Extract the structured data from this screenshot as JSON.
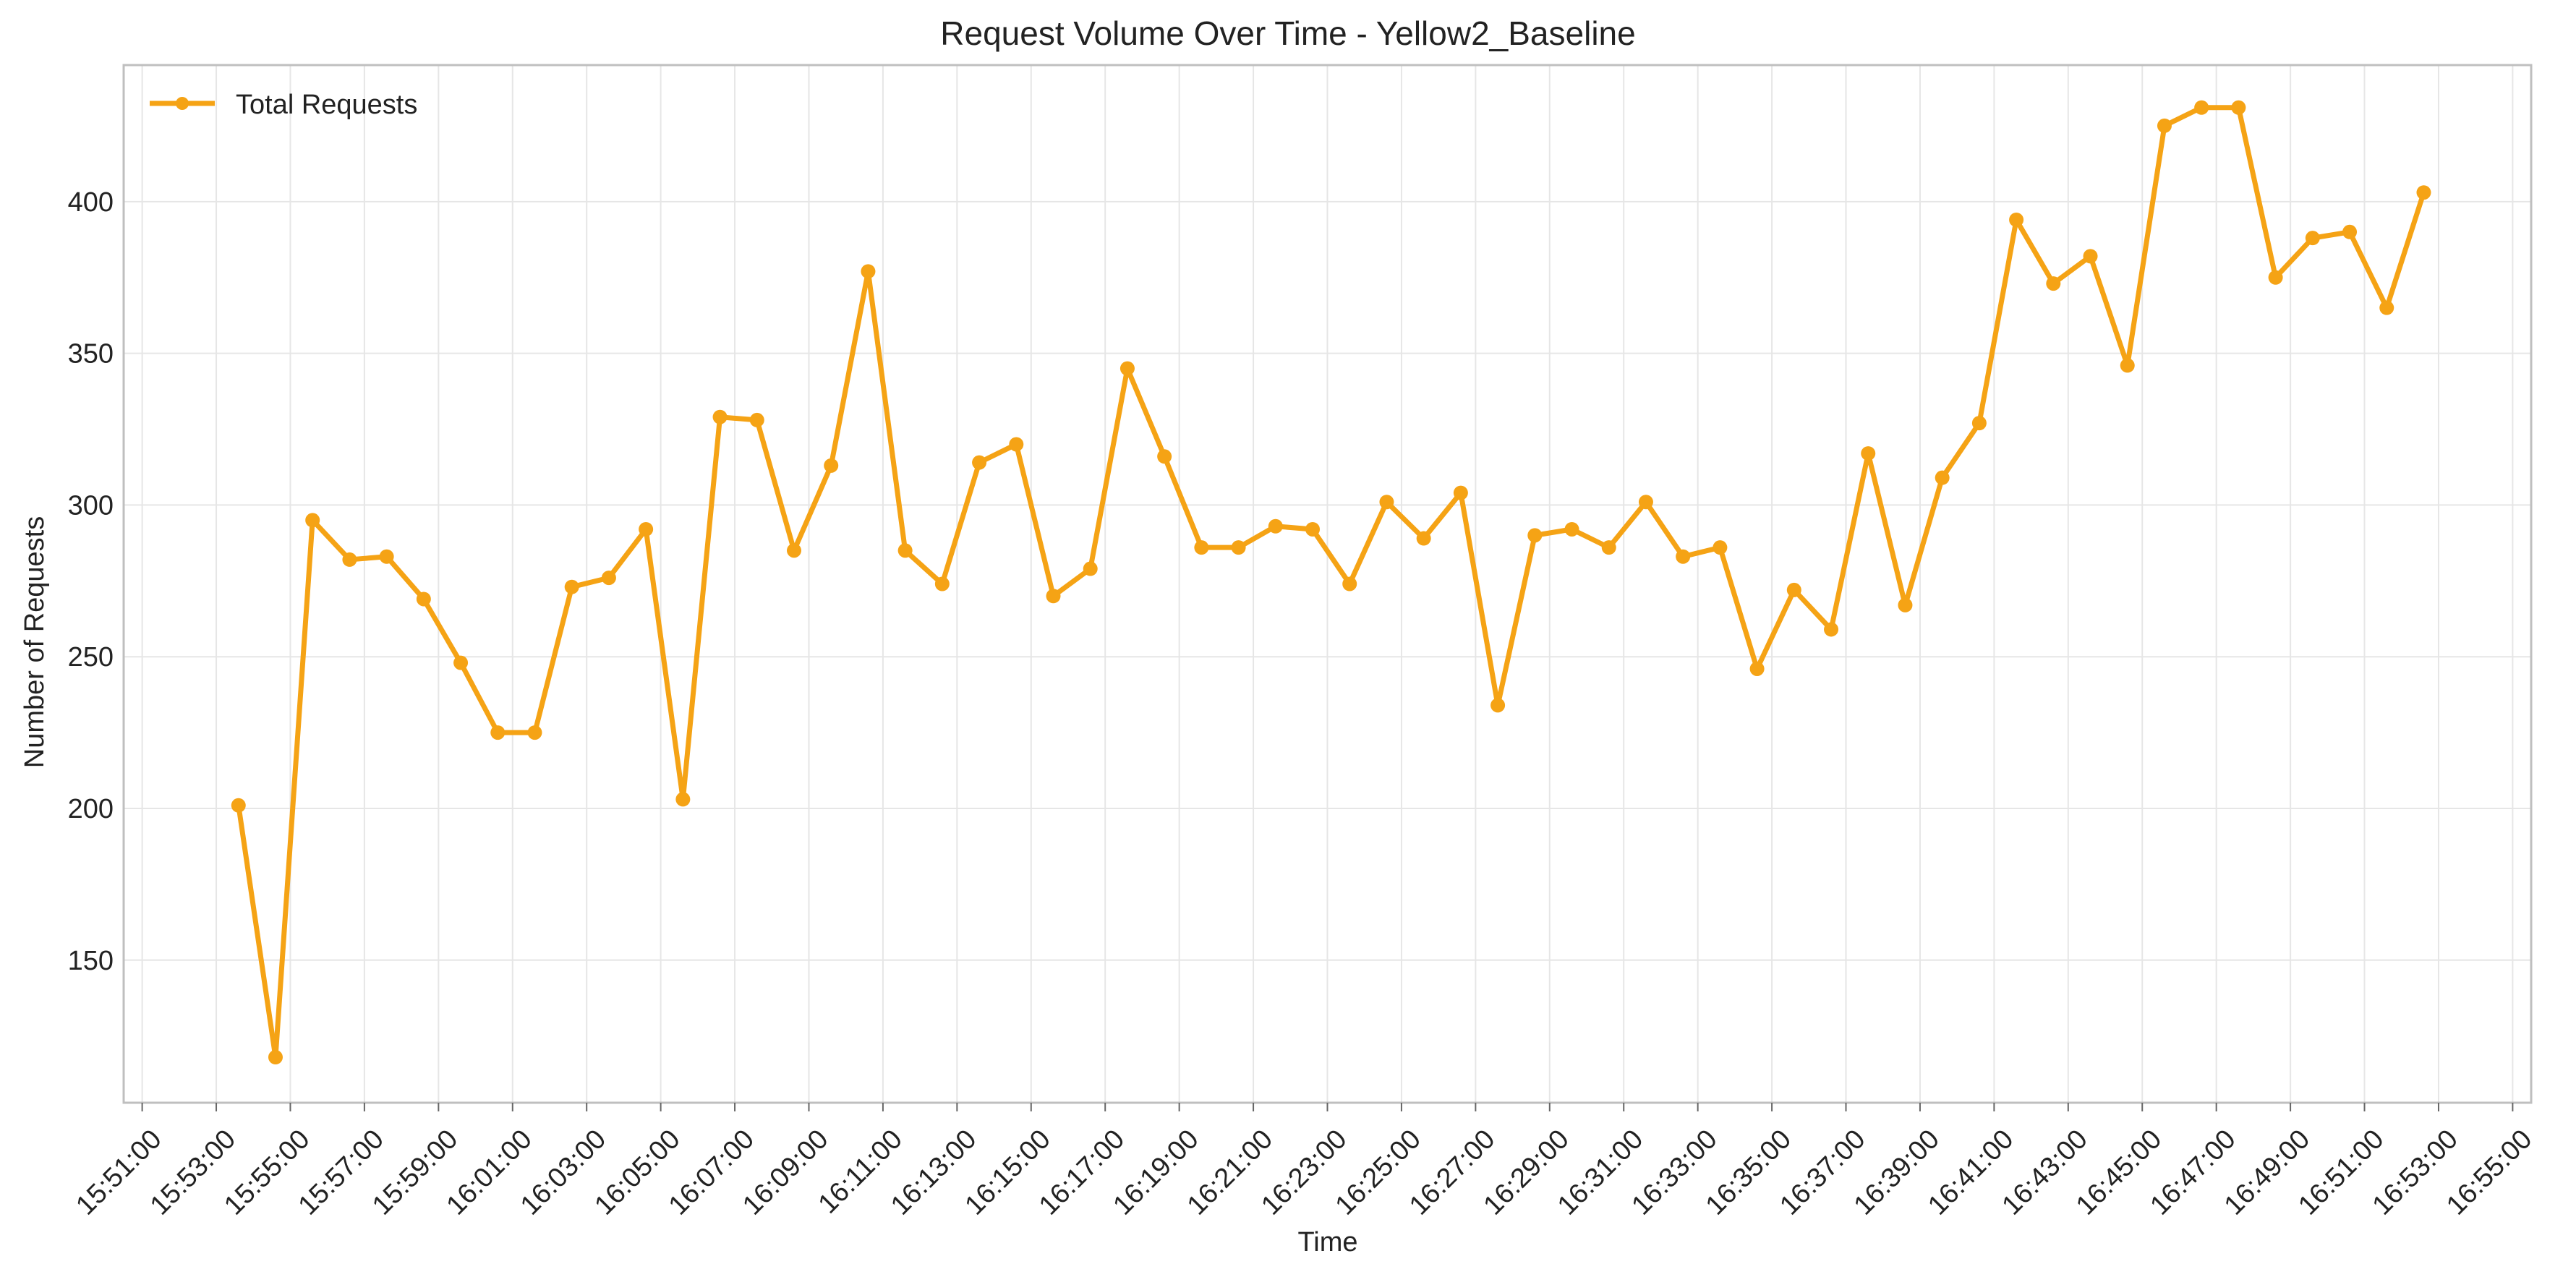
{
  "chart_data": {
    "type": "line",
    "title": "Request Volume Over Time - Yellow2_Baseline",
    "xlabel": "Time",
    "ylabel": "Number of Requests",
    "xlim": [
      "15:50:30",
      "16:55:30"
    ],
    "ylim": [
      103,
      445
    ],
    "x_ticks": [
      "15:51:00",
      "15:53:00",
      "15:55:00",
      "15:57:00",
      "15:59:00",
      "16:01:00",
      "16:03:00",
      "16:05:00",
      "16:07:00",
      "16:09:00",
      "16:11:00",
      "16:13:00",
      "16:15:00",
      "16:17:00",
      "16:19:00",
      "16:21:00",
      "16:23:00",
      "16:25:00",
      "16:27:00",
      "16:29:00",
      "16:31:00",
      "16:33:00",
      "16:35:00",
      "16:37:00",
      "16:39:00",
      "16:41:00",
      "16:43:00",
      "16:45:00",
      "16:47:00",
      "16:49:00",
      "16:51:00",
      "16:53:00",
      "16:55:00"
    ],
    "y_ticks": [
      150,
      200,
      250,
      300,
      350,
      400
    ],
    "grid": true,
    "legend_position": "top-left",
    "colors": {
      "series": "#f5a315",
      "grid": "#e6e6e6",
      "frame": "#bfbfbf"
    },
    "series": [
      {
        "name": "Total Requests",
        "x": [
          "15:53:36",
          "15:54:36",
          "15:55:36",
          "15:56:36",
          "15:57:36",
          "15:58:36",
          "15:59:36",
          "16:00:36",
          "16:01:36",
          "16:02:36",
          "16:03:36",
          "16:04:36",
          "16:05:36",
          "16:06:36",
          "16:07:36",
          "16:08:36",
          "16:09:36",
          "16:10:36",
          "16:11:36",
          "16:12:36",
          "16:13:36",
          "16:14:36",
          "16:15:36",
          "16:16:36",
          "16:17:36",
          "16:18:36",
          "16:19:36",
          "16:20:36",
          "16:21:36",
          "16:22:36",
          "16:23:36",
          "16:24:36",
          "16:25:36",
          "16:26:36",
          "16:27:36",
          "16:28:36",
          "16:29:36",
          "16:30:36",
          "16:31:36",
          "16:32:36",
          "16:33:36",
          "16:34:36",
          "16:35:36",
          "16:36:36",
          "16:37:36",
          "16:38:36",
          "16:39:36",
          "16:40:36",
          "16:41:36",
          "16:42:36",
          "16:43:36",
          "16:44:36",
          "16:45:36",
          "16:46:36",
          "16:47:36",
          "16:48:36",
          "16:49:36",
          "16:50:36",
          "16:51:36",
          "16:52:36"
        ],
        "values": [
          201,
          118,
          295,
          282,
          283,
          269,
          248,
          225,
          225,
          273,
          276,
          292,
          203,
          329,
          328,
          285,
          313,
          377,
          285,
          274,
          314,
          320,
          270,
          279,
          345,
          316,
          286,
          286,
          293,
          292,
          274,
          301,
          289,
          304,
          234,
          290,
          292,
          286,
          301,
          283,
          286,
          246,
          272,
          259,
          317,
          267,
          309,
          327,
          394,
          373,
          382,
          346,
          425,
          431,
          431,
          375,
          388,
          390,
          365,
          403
        ]
      }
    ]
  }
}
